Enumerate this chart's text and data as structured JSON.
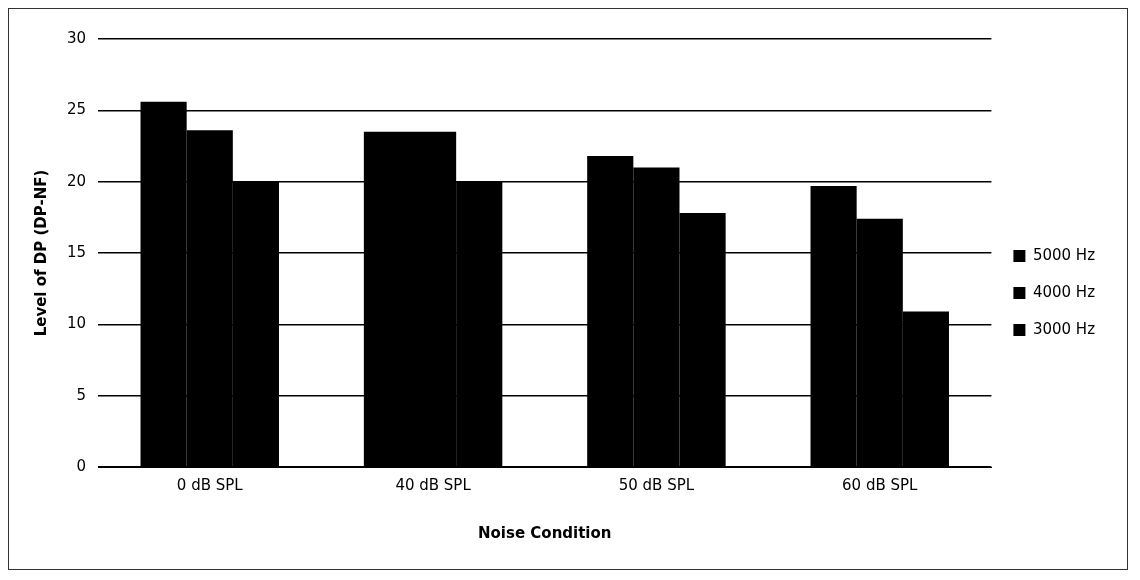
{
  "chart_data": {
    "type": "bar",
    "xlabel": "Noise Condition",
    "ylabel": "Level of DP (DP-NF)",
    "categories": [
      "0 dB SPL",
      "40 dB SPL",
      "50 dB SPL",
      "60 dB SPL"
    ],
    "series": [
      {
        "name": "5000 Hz",
        "color": "#000000",
        "values": [
          25.6,
          23.5,
          21.8,
          19.7
        ]
      },
      {
        "name": "4000 Hz",
        "color": "#000000",
        "values": [
          23.6,
          23.5,
          21.0,
          17.4
        ]
      },
      {
        "name": "3000 Hz",
        "color": "#000000",
        "values": [
          20.0,
          20.0,
          17.8,
          10.9
        ]
      }
    ],
    "ylim": [
      0,
      30
    ],
    "yticks": [
      0,
      5,
      10,
      15,
      20,
      25,
      30
    ],
    "grid": "y",
    "legend": "right"
  }
}
